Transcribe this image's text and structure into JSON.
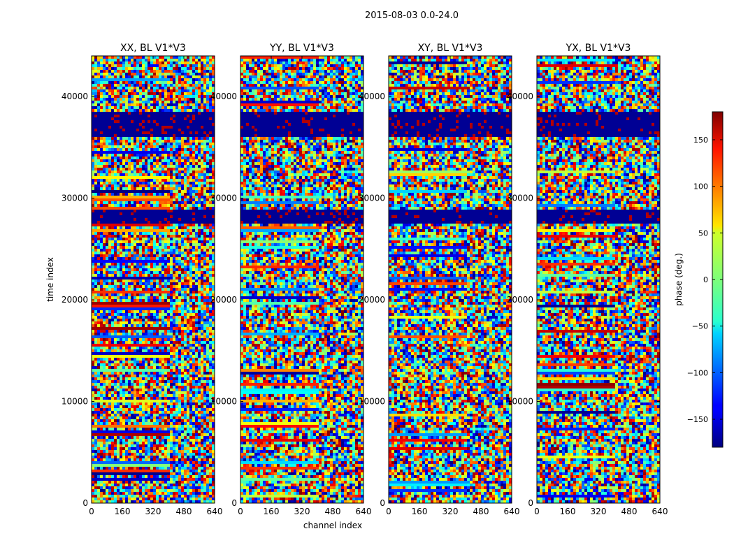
{
  "figure": {
    "suptitle": "2015-08-03 0.0-24.0",
    "ylabel": "time index",
    "xlabel": "channel index"
  },
  "colorbar": {
    "label": "phase (deg.)",
    "colormap": "jet",
    "range": [
      -180,
      180
    ],
    "ticks": [
      "150",
      "100",
      "50",
      "0",
      "−50",
      "−100",
      "−150"
    ],
    "tick_values": [
      150,
      100,
      50,
      0,
      -50,
      -100,
      -150
    ]
  },
  "chart_data": [
    {
      "type": "heatmap",
      "title": "XX, BL V1*V3",
      "x_range": [
        0,
        640
      ],
      "y_range": [
        0,
        44000
      ],
      "x_ticks": [
        "0",
        "160",
        "320",
        "480",
        "640"
      ],
      "y_ticks": [
        "0",
        "10000",
        "20000",
        "30000",
        "40000"
      ],
      "value_range_deg": [
        -180,
        180
      ]
    },
    {
      "type": "heatmap",
      "title": "YY, BL V1*V3",
      "x_range": [
        0,
        640
      ],
      "y_range": [
        0,
        44000
      ],
      "x_ticks": [
        "0",
        "160",
        "320",
        "480",
        "640"
      ],
      "y_ticks": [
        "0",
        "10000",
        "20000",
        "30000",
        "40000"
      ],
      "value_range_deg": [
        -180,
        180
      ]
    },
    {
      "type": "heatmap",
      "title": "XY, BL V1*V3",
      "x_range": [
        0,
        640
      ],
      "y_range": [
        0,
        44000
      ],
      "x_ticks": [
        "0",
        "160",
        "320",
        "480",
        "640"
      ],
      "y_ticks": [
        "0",
        "10000",
        "20000",
        "30000",
        "40000"
      ],
      "value_range_deg": [
        -180,
        180
      ]
    },
    {
      "type": "heatmap",
      "title": "YX, BL V1*V3",
      "x_range": [
        0,
        640
      ],
      "y_range": [
        0,
        44000
      ],
      "x_ticks": [
        "0",
        "160",
        "320",
        "480",
        "640"
      ],
      "y_ticks": [
        "0",
        "10000",
        "20000",
        "30000",
        "40000"
      ],
      "value_range_deg": [
        -180,
        180
      ]
    }
  ]
}
